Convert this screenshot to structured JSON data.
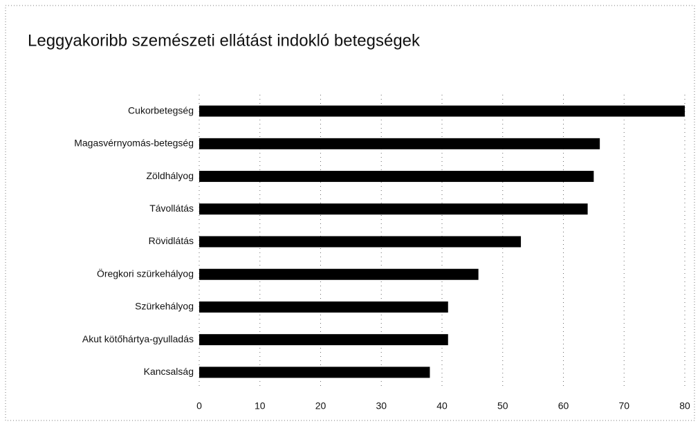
{
  "chart_data": {
    "type": "bar",
    "orientation": "horizontal",
    "title": "Leggyakoribb szemészeti ellátást indokló betegségek",
    "categories": [
      "Cukorbetegség",
      "Magasvérnyomás-betegség",
      "Zöldhályog",
      "Távollátás",
      "Rövidlátás",
      "Öregkori szürkehályog",
      "Szürkehályog",
      "Akut kötőhártya-gyulladás",
      "Kancsalság"
    ],
    "values": [
      80,
      66,
      65,
      64,
      53,
      46,
      41,
      41,
      38
    ],
    "color": "#000000",
    "xlim": [
      0,
      80
    ],
    "xticks": [
      0,
      10,
      20,
      30,
      40,
      50,
      60,
      70,
      80
    ],
    "grid": true
  }
}
